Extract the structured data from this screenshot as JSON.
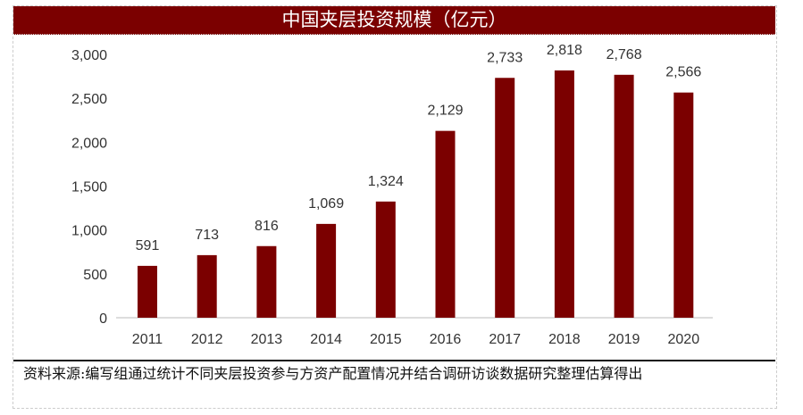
{
  "chart_data": {
    "type": "bar",
    "title": "中国夹层投资规模（亿元）",
    "categories": [
      "2011",
      "2012",
      "2013",
      "2014",
      "2015",
      "2016",
      "2017",
      "2018",
      "2019",
      "2020"
    ],
    "values": [
      591,
      713,
      816,
      1069,
      1324,
      2129,
      2733,
      2818,
      2768,
      2566
    ],
    "value_labels": [
      "591",
      "713",
      "816",
      "1,069",
      "1,324",
      "2,129",
      "2,733",
      "2,818",
      "2,768",
      "2,566"
    ],
    "ylim": [
      0,
      3000
    ],
    "yticks": [
      0,
      500,
      1000,
      1500,
      2000,
      2500,
      3000
    ],
    "ytick_labels": [
      "0",
      "500",
      "1,000",
      "1,500",
      "2,000",
      "2,500",
      "3,000"
    ],
    "xlabel": "",
    "ylabel": "",
    "grid": false,
    "bar_color": "#7b0000"
  },
  "source": "资料来源:编写组通过统计不同夹层投资参与方资产配置情况并结合调研访谈数据研究整理估算得出"
}
